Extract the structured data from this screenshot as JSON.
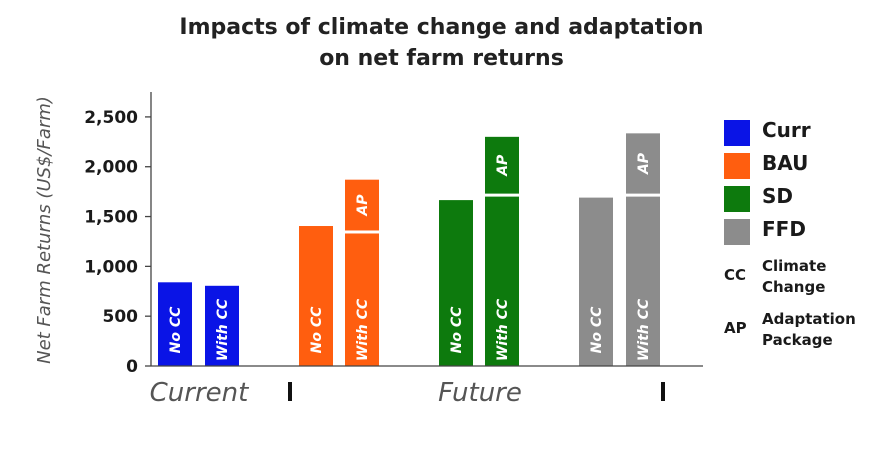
{
  "chart_data": {
    "type": "bar",
    "title_lines": [
      "Impacts of climate change and adaptation",
      "on net farm returns"
    ],
    "ylabel": "Net Farm Returns (US$/Farm)",
    "ylim": [
      0,
      2750
    ],
    "yticks": [
      0,
      500,
      1000,
      1500,
      2000,
      2500
    ],
    "ytick_labels": [
      "0",
      "500",
      "1,000",
      "1,500",
      "2,000",
      "2,500"
    ],
    "group_labels": [
      "Current",
      "Future"
    ],
    "legend_position": "right",
    "legend": [
      {
        "name": "Curr",
        "color": "#0a14e6"
      },
      {
        "name": "BAU",
        "color": "#ff5e0f"
      },
      {
        "name": "SD",
        "color": "#0d7a0d"
      },
      {
        "name": "FFD",
        "color": "#8c8c8c"
      }
    ],
    "abbreviations": [
      {
        "abbr": "CC",
        "lines": [
          "Climate",
          "Change"
        ]
      },
      {
        "abbr": "AP",
        "lines": [
          "Adaptation",
          "Package"
        ]
      }
    ],
    "series": [
      {
        "name": "Curr",
        "color": "#0a14e6",
        "bars": [
          {
            "label": "No CC",
            "value": 840
          },
          {
            "label": "With CC",
            "value": 805
          }
        ]
      },
      {
        "name": "BAU",
        "color": "#ff5e0f",
        "bars": [
          {
            "label": "No CC",
            "value": 1405
          },
          {
            "label": "With CC",
            "value": 1330,
            "ap_value": 1870,
            "ap_label": "AP"
          }
        ]
      },
      {
        "name": "SD",
        "color": "#0d7a0d",
        "bars": [
          {
            "label": "No CC",
            "value": 1665
          },
          {
            "label": "With CC",
            "value": 1700,
            "ap_value": 2300,
            "ap_label": "AP"
          }
        ]
      },
      {
        "name": "FFD",
        "color": "#8c8c8c",
        "bars": [
          {
            "label": "No CC",
            "value": 1690
          },
          {
            "label": "With CC",
            "value": 1700,
            "ap_value": 2335,
            "ap_label": "AP"
          }
        ]
      }
    ]
  }
}
